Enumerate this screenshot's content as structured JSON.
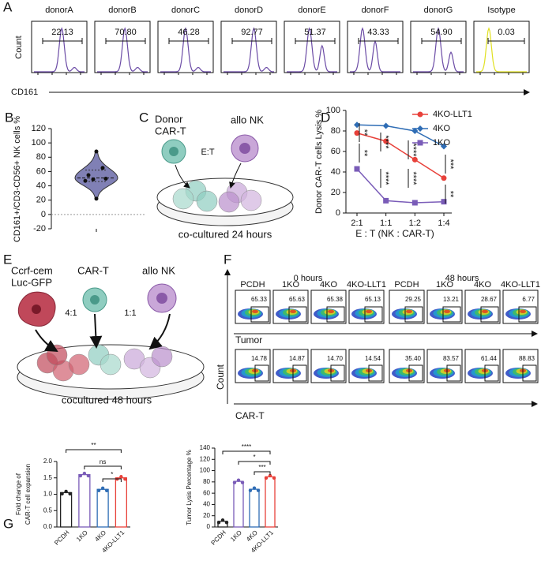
{
  "figure": {
    "panel_labels": [
      "A",
      "B",
      "C",
      "D",
      "E",
      "F",
      "G"
    ],
    "schematic_c": {
      "car_t": [
        "Donor",
        "CAR-T"
      ],
      "nk": "allo NK",
      "ratio": "E:T",
      "caption": "co-cultured 24 hours"
    },
    "schematic_e": {
      "target": [
        "Ccrf-cem",
        "Luc-GFP"
      ],
      "car_t": "CAR-T",
      "nk": "allo NK",
      "ratios": [
        "4:1",
        "1:1"
      ],
      "caption": "cocultured 48 hours"
    }
  },
  "chart_data": [
    {
      "type": "flow-histograms",
      "categories": [
        "donorA",
        "donorB",
        "donorC",
        "donorD",
        "donorE",
        "donorF",
        "donorG",
        "Isotype"
      ],
      "values": [
        22.13,
        70.8,
        46.28,
        92.77,
        51.37,
        43.33,
        54.9,
        0.03
      ],
      "value_labels": [
        "22.13",
        "70.80",
        "46.28",
        "92.77",
        "51.37",
        "43.33",
        "54.90",
        "0.03"
      ],
      "colors": [
        "#6a4aa5",
        "#6a4aa5",
        "#6a4aa5",
        "#6a4aa5",
        "#6a4aa5",
        "#6a4aa5",
        "#6a4aa5",
        "#e0e020"
      ],
      "ylabel": "Count",
      "xlabel": "CD161"
    },
    {
      "type": "violin",
      "ylabel": "CD161+/CD3-CD56+ NK cells %",
      "values": [
        88,
        65,
        55,
        50,
        49,
        47,
        22
      ],
      "median": 51,
      "quartiles": [
        46,
        62
      ],
      "ylim": [
        -20,
        120
      ],
      "yticks": [
        -20,
        0,
        20,
        40,
        60,
        80,
        100,
        120
      ],
      "color": "#6a6aa8"
    },
    {
      "type": "line",
      "ylabel": "Donor CAR-T cells Lysis %",
      "xlabel": "E : T (NK : CAR-T)",
      "categories": [
        "2:1",
        "1:1",
        "1:2",
        "1:4"
      ],
      "ylim": [
        0,
        100
      ],
      "yticks": [
        0,
        20,
        40,
        60,
        80,
        100
      ],
      "series": [
        {
          "name": "4KO-LLT1",
          "color": "#e8413a",
          "values": [
            78,
            70,
            52,
            34
          ]
        },
        {
          "name": "4KO",
          "color": "#2f6db5",
          "values": [
            86,
            85,
            80,
            65
          ]
        },
        {
          "name": "1KO",
          "color": "#7a5cb8",
          "values": [
            43,
            12,
            10,
            11
          ]
        }
      ],
      "annotations": [
        "**",
        "**",
        "****",
        "****",
        "****",
        "****",
        "***",
        "**"
      ]
    },
    {
      "type": "flow-dots",
      "ylabel": "Count",
      "groups": [
        "0 hours",
        "48 hours"
      ],
      "categories": [
        "PCDH",
        "1KO",
        "4KO",
        "4KO-LLT1",
        "PCDH",
        "1KO",
        "4KO",
        "4KO-LLT1"
      ],
      "rows": [
        {
          "name": "Tumor",
          "values": [
            65.33,
            65.63,
            65.38,
            65.13,
            29.25,
            13.21,
            28.67,
            6.77
          ],
          "value_labels": [
            "65.33",
            "65.63",
            "65.38",
            "65.13",
            "29.25",
            "13.21",
            "28.67",
            "6.77"
          ]
        },
        {
          "name": "CAR-T",
          "values": [
            14.78,
            14.87,
            14.7,
            14.54,
            35.4,
            83.57,
            61.44,
            88.83
          ],
          "value_labels": [
            "14.78",
            "14.87",
            "14.70",
            "14.54",
            "35.40",
            "83.57",
            "61.44",
            "88.83"
          ]
        }
      ]
    },
    {
      "type": "bar",
      "ylabel": [
        "Fold change of",
        "CAR-T cell expansion"
      ],
      "categories": [
        "PCDH",
        "1KO",
        "4KO",
        "4KO-LLT1"
      ],
      "values": [
        1.05,
        1.6,
        1.15,
        1.5
      ],
      "colors": [
        "#222222",
        "#7a5cb8",
        "#2f6db5",
        "#e8413a"
      ],
      "ylim": [
        0,
        2
      ],
      "yticks": [
        {
          "value": 0,
          "label": "0.0"
        },
        0.5,
        {
          "value": 1,
          "label": "1.0"
        },
        1.5,
        {
          "value": 2,
          "label": "2.0"
        }
      ],
      "annotations": [
        "**",
        "ns",
        "*"
      ]
    },
    {
      "type": "bar",
      "ylabel": [
        "Tumor Lysis Percentage %"
      ],
      "categories": [
        "PCDH",
        "1KO",
        "4KO",
        "4KO-LLT1"
      ],
      "values": [
        10,
        81,
        67,
        89
      ],
      "colors": [
        "#222222",
        "#7a5cb8",
        "#2f6db5",
        "#e8413a"
      ],
      "ylim": [
        0,
        140
      ],
      "yticks": [
        0,
        20,
        40,
        60,
        80,
        100,
        120,
        140
      ],
      "annotations": [
        "****",
        "*",
        "***"
      ]
    }
  ]
}
